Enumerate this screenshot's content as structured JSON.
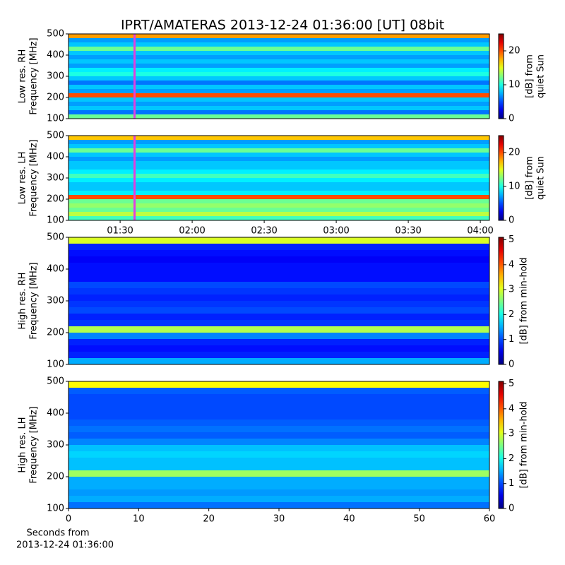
{
  "chart_data": [
    {
      "type": "spectrogram",
      "title": "IPRT/AMATERAS 2013-12-24 01:36:00 [UT]   08bit",
      "ylabel": [
        "Low res. RH",
        "Frequency [MHz]"
      ],
      "ylim": [
        100,
        500
      ],
      "yticks": [
        100,
        200,
        300,
        400,
        500
      ],
      "xlim": [
        68.5,
        243.8
      ],
      "marker": {
        "x": 96,
        "color": "#e040e0"
      },
      "frequencies": [
        110,
        130,
        150,
        170,
        190,
        210,
        230,
        250,
        270,
        290,
        310,
        330,
        350,
        370,
        390,
        410,
        430,
        450,
        470,
        490
      ],
      "values": [
        12,
        6,
        8,
        7,
        8,
        20,
        7,
        8,
        6,
        8,
        10,
        9,
        7,
        8,
        7,
        8,
        12,
        8,
        7,
        18
      ],
      "clim": [
        0,
        25
      ],
      "cticks": [
        0,
        10,
        20
      ],
      "clabel": [
        "[dB] from",
        "quiet Sun"
      ]
    },
    {
      "type": "spectrogram",
      "ylabel": [
        "Low res. LH",
        "Frequency [MHz]"
      ],
      "ylim": [
        100,
        500
      ],
      "yticks": [
        100,
        200,
        300,
        400,
        500
      ],
      "xlim": [
        68.5,
        243.8
      ],
      "marker": {
        "x": 96,
        "color": "#e040e0"
      },
      "xticks": [
        {
          "value": 90,
          "label": "01:30"
        },
        {
          "value": 120,
          "label": "02:00"
        },
        {
          "value": 150,
          "label": "02:30"
        },
        {
          "value": 180,
          "label": "03:00"
        },
        {
          "value": 210,
          "label": "03:30"
        },
        {
          "value": 240,
          "label": "04:00"
        }
      ],
      "frequencies": [
        110,
        130,
        150,
        170,
        190,
        210,
        230,
        250,
        270,
        290,
        310,
        330,
        350,
        370,
        390,
        410,
        430,
        450,
        470,
        490
      ],
      "values": [
        11,
        14,
        12,
        13,
        12,
        20,
        9,
        8,
        8,
        9,
        11,
        9,
        8,
        8,
        7,
        8,
        12,
        8,
        7,
        17
      ],
      "clim": [
        0,
        25
      ],
      "cticks": [
        0,
        10,
        20
      ],
      "clabel": [
        "[dB] from",
        "quiet Sun"
      ]
    },
    {
      "type": "spectrogram",
      "ylabel": [
        "High res. RH",
        "Frequency [MHz]"
      ],
      "ylim": [
        100,
        500
      ],
      "yticks": [
        100,
        200,
        300,
        400,
        500
      ],
      "frequencies": [
        110,
        130,
        150,
        170,
        190,
        210,
        230,
        250,
        270,
        290,
        310,
        330,
        350,
        370,
        390,
        410,
        430,
        450,
        470,
        490
      ],
      "values": [
        1.5,
        0.8,
        0.7,
        0.8,
        1.3,
        2.8,
        0.9,
        0.8,
        1,
        0.9,
        0.8,
        0.9,
        1,
        0.7,
        0.7,
        0.7,
        0.6,
        0.7,
        0.8,
        3
      ],
      "clim": [
        0,
        5.1
      ],
      "cticks": [
        0,
        1,
        2,
        3,
        4,
        5
      ],
      "clabel": [
        "[dB] from min-hold"
      ]
    },
    {
      "type": "spectrogram",
      "ylabel": [
        "High res. LH",
        "Frequency [MHz]"
      ],
      "ylim": [
        100,
        500
      ],
      "yticks": [
        100,
        200,
        300,
        400,
        500
      ],
      "xlim": [
        0,
        60
      ],
      "xticks": [
        0,
        10,
        20,
        30,
        40,
        50,
        60
      ],
      "xlabel": [
        "Seconds from",
        "2013-12-24 01:36:00"
      ],
      "frequencies": [
        110,
        130,
        150,
        170,
        190,
        210,
        230,
        250,
        270,
        290,
        310,
        330,
        350,
        370,
        390,
        410,
        430,
        450,
        470,
        490
      ],
      "values": [
        1.2,
        1.5,
        1.4,
        1.5,
        1.5,
        2.7,
        1.6,
        1.6,
        1.7,
        1.6,
        1.3,
        1.1,
        1.2,
        1.1,
        1.0,
        1.0,
        1.0,
        1.0,
        1.1,
        3.2
      ],
      "clim": [
        0,
        5.1
      ],
      "cticks": [
        0,
        1,
        2,
        3,
        4,
        5
      ],
      "clabel": [
        "[dB] from min-hold"
      ]
    }
  ]
}
